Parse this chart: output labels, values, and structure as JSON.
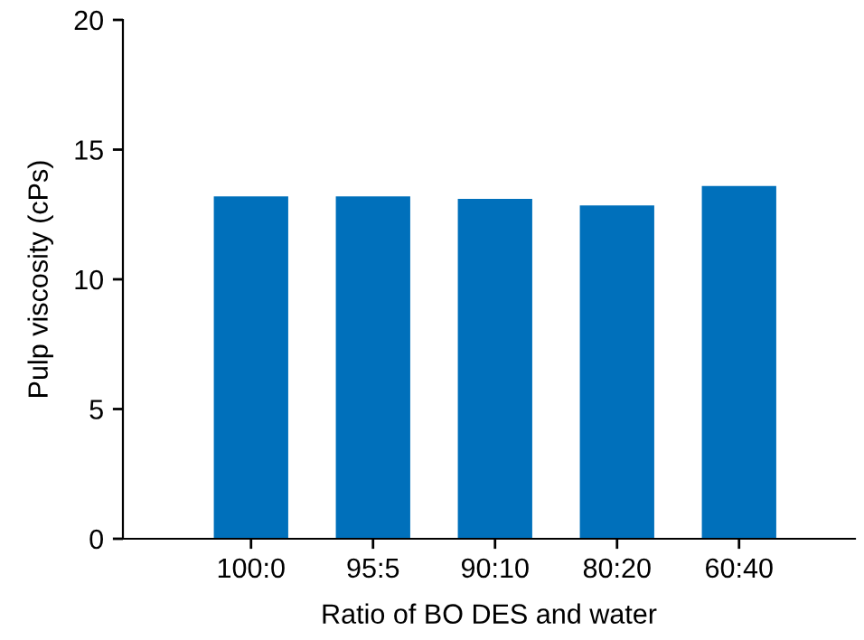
{
  "chart_data": {
    "type": "bar",
    "xlabel": "Ratio of BO DES and water",
    "ylabel": "Pulp viscosity (cPs)",
    "categories": [
      "100:0",
      "95:5",
      "90:10",
      "80:20",
      "60:40"
    ],
    "values": [
      13.2,
      13.2,
      13.1,
      12.85,
      13.6
    ],
    "color": "#0070bb",
    "ylim": [
      0,
      20
    ],
    "yticks": [
      0,
      5,
      10,
      15,
      20
    ],
    "grid": false
  }
}
